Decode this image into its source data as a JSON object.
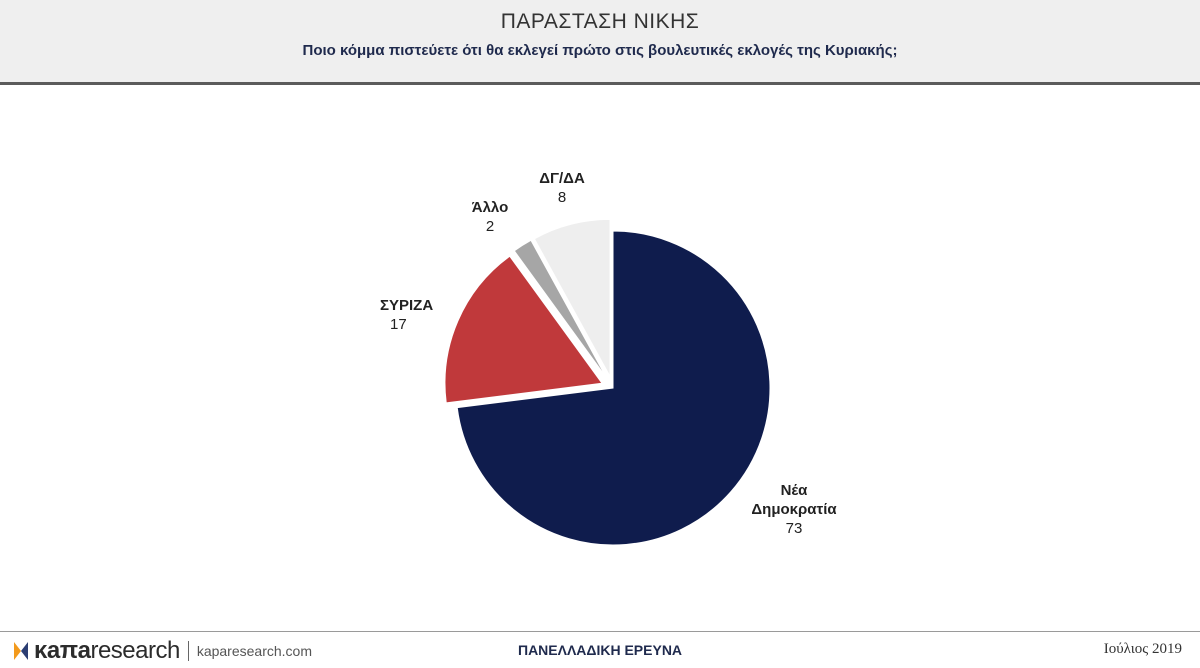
{
  "header": {
    "title": "ΠΑΡΑΣΤΑΣΗ ΝΙΚΗΣ",
    "subtitle": "Ποιο κόμμα πιστεύετε ότι θα εκλεγεί πρώτο στις βουλευτικές εκλογές της Κυριακής;"
  },
  "chart_data": {
    "type": "pie",
    "title": "",
    "slices": [
      {
        "label_lines": [
          "Νέα",
          "Δημοκρατία"
        ],
        "value": 73,
        "color": "#0f1c4d"
      },
      {
        "label_lines": [
          "ΣΥΡΙΖΑ"
        ],
        "value": 17,
        "color": "#c0393b"
      },
      {
        "label_lines": [
          "Άλλο"
        ],
        "value": 2,
        "color": "#a6a6a6"
      },
      {
        "label_lines": [
          "ΔΓ/ΔΑ"
        ],
        "value": 8,
        "color": "#eeeeee"
      }
    ],
    "exploded": [
      "ΣΥΡΙΖΑ",
      "Άλλο",
      "ΔΓ/ΔΑ"
    ]
  },
  "footer": {
    "logo_part1": "κaπa",
    "logo_part2": "research",
    "url": "kaparesearch.com",
    "center": "ΠΑΝΕΛΛΑΔΙΚΗ ΕΡΕΥΝΑ",
    "date": "Ιούλιος 2019"
  },
  "colors": {
    "logo_accent": "#f39a1c",
    "header_bg": "#efefef"
  }
}
